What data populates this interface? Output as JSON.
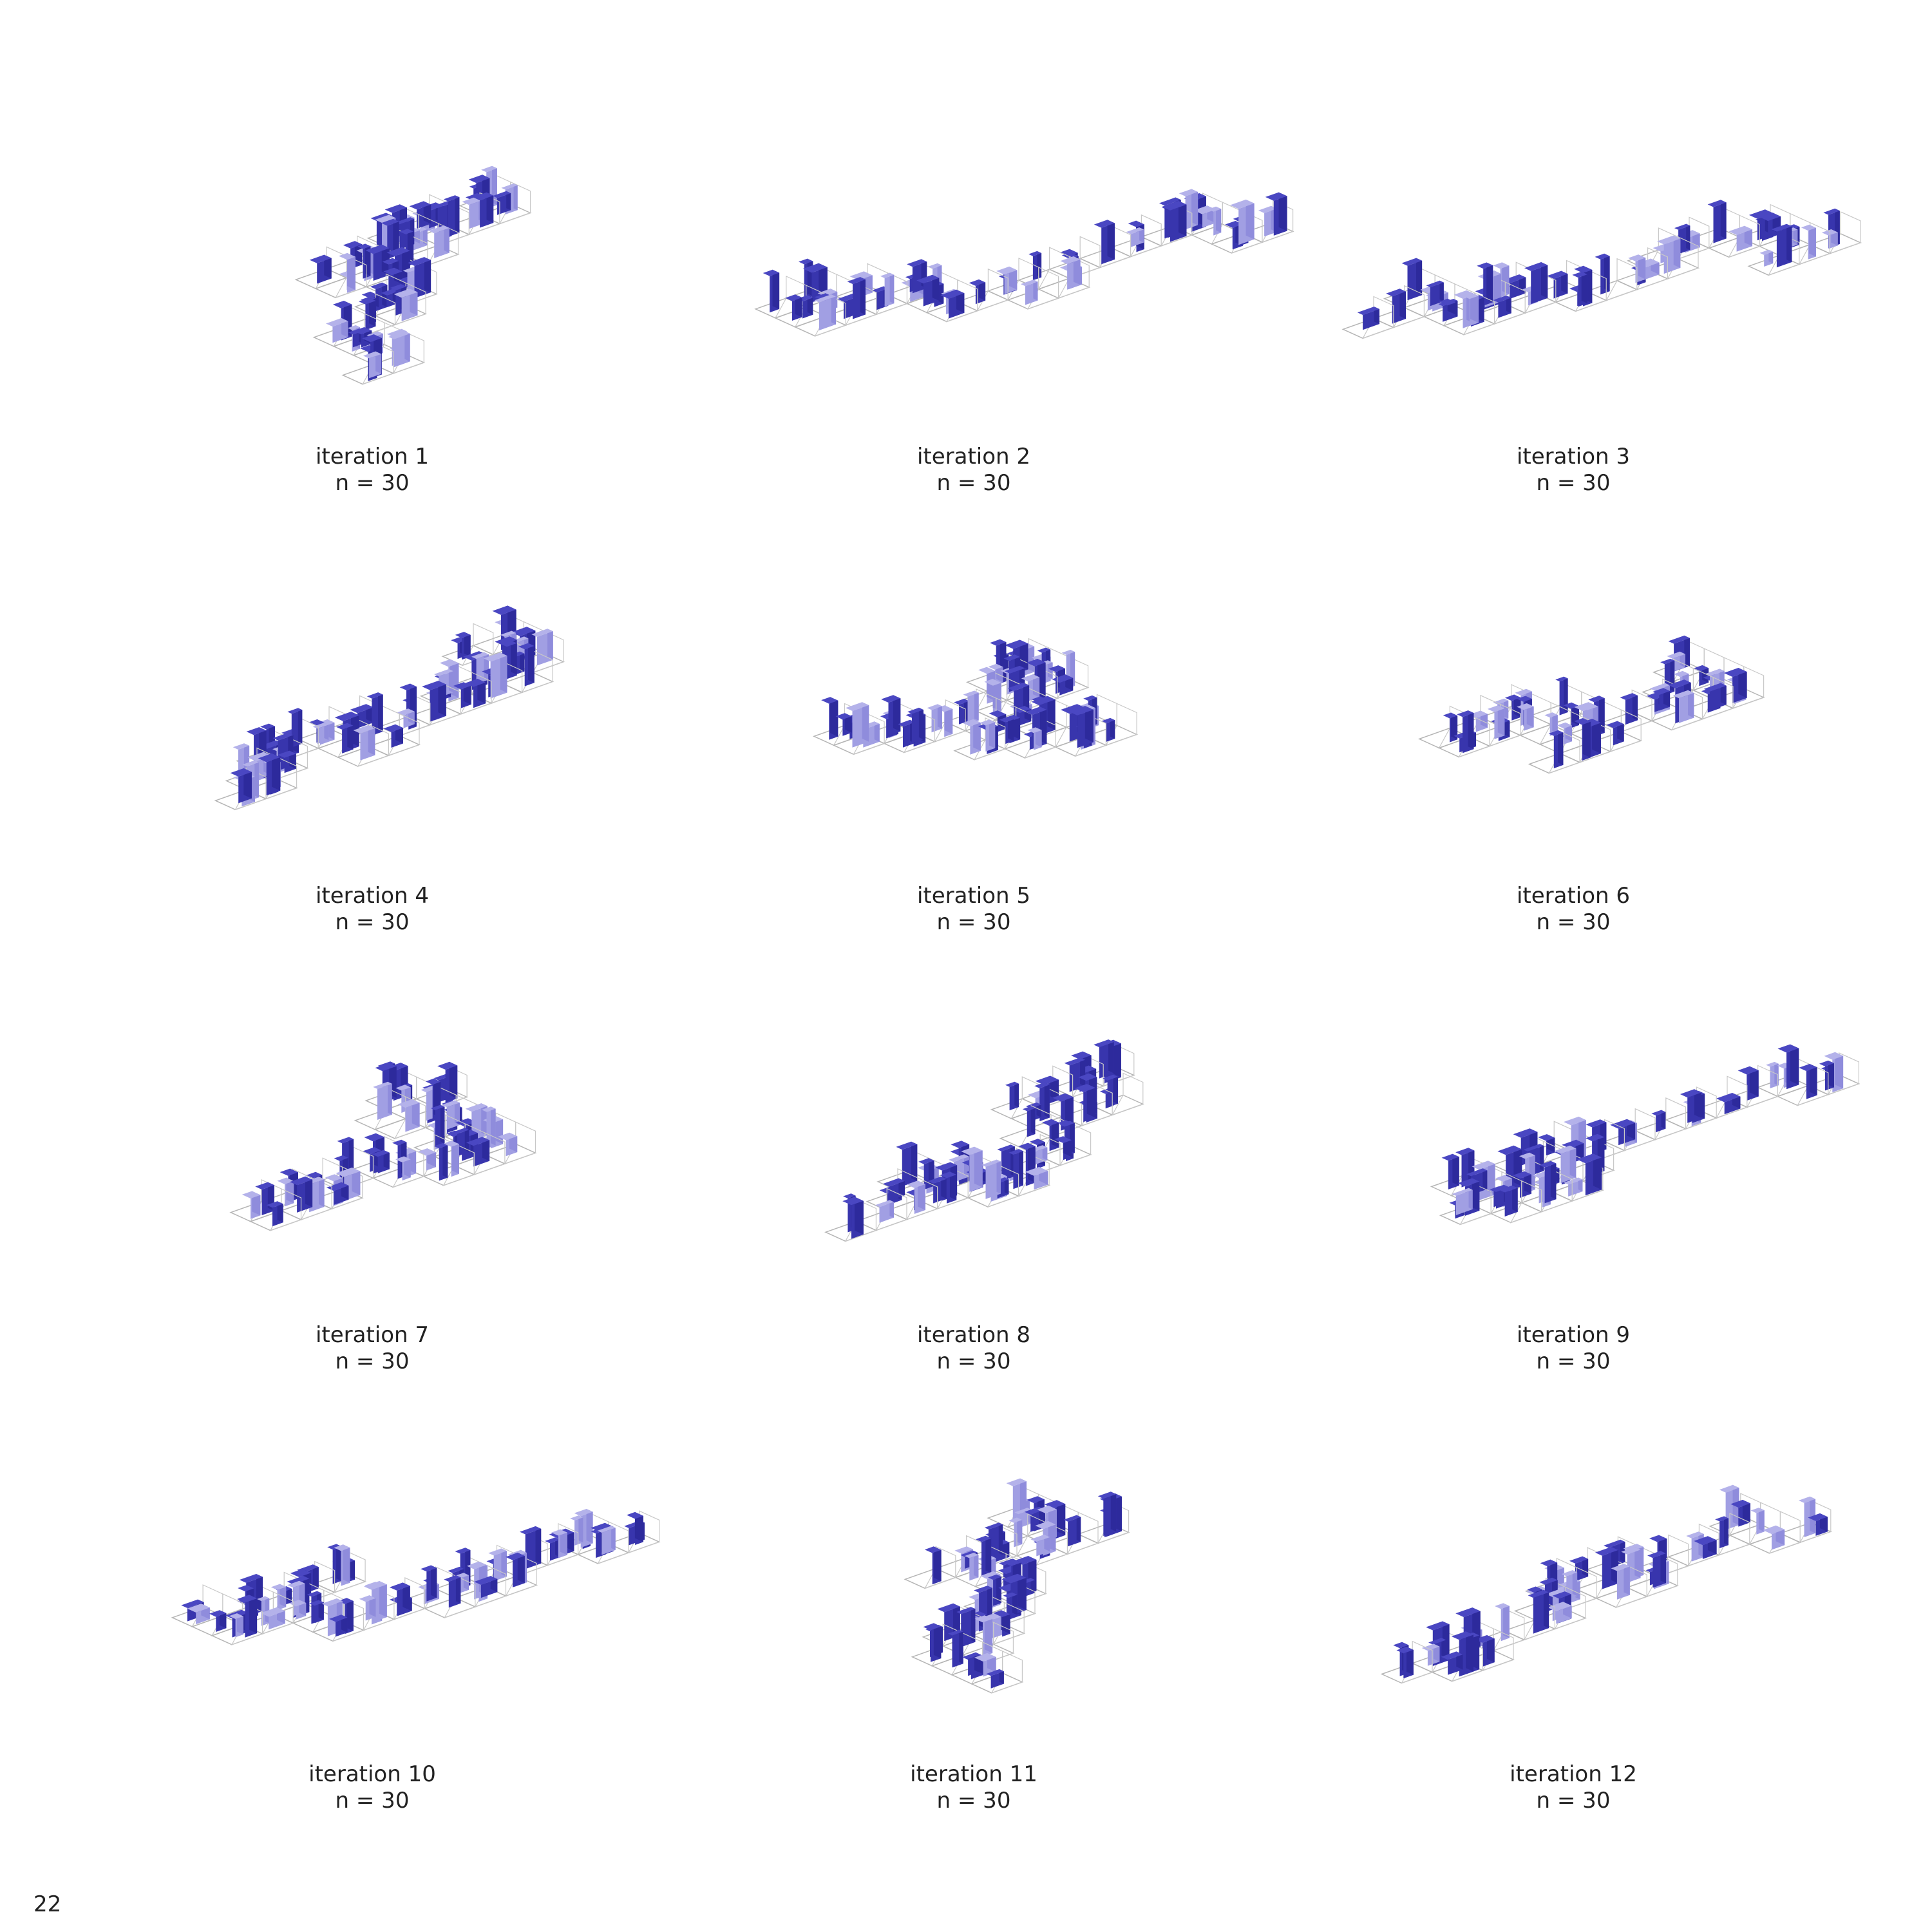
{
  "figures": [
    {
      "title": "iteration 1",
      "subtitle": "n = 30"
    },
    {
      "title": "iteration 2",
      "subtitle": "n = 30"
    },
    {
      "title": "iteration 3",
      "subtitle": "n = 30"
    },
    {
      "title": "iteration 4",
      "subtitle": "n = 30"
    },
    {
      "title": "iteration 5",
      "subtitle": "n = 30"
    },
    {
      "title": "iteration 6",
      "subtitle": "n = 30"
    },
    {
      "title": "iteration 7",
      "subtitle": "n = 30"
    },
    {
      "title": "iteration 8",
      "subtitle": "n = 30"
    },
    {
      "title": "iteration 9",
      "subtitle": "n = 30"
    },
    {
      "title": "iteration 10",
      "subtitle": "n = 30"
    },
    {
      "title": "iteration 11",
      "subtitle": "n = 30"
    },
    {
      "title": "iteration 12",
      "subtitle": "n = 30"
    }
  ],
  "page_number": "22"
}
